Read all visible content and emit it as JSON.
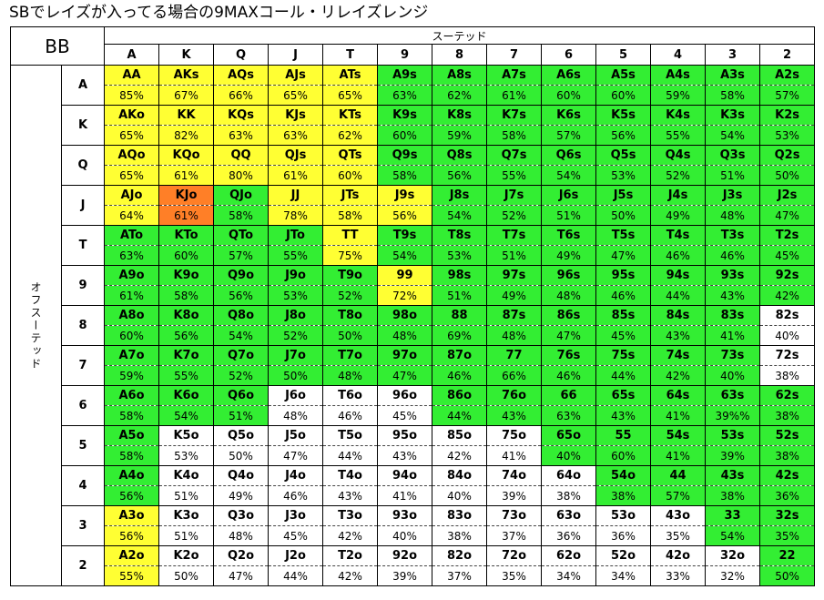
{
  "title": "SBでレイズが入ってる場合の9MAXコール・リレイズレンジ",
  "corner_label": "BB",
  "suited_label": "スーテッド",
  "offsuit_label": "オフスーテッド",
  "ranks": [
    "A",
    "K",
    "Q",
    "J",
    "T",
    "9",
    "8",
    "7",
    "6",
    "5",
    "4",
    "3",
    "2"
  ],
  "colors": {
    "y": "#ffff33",
    "g": "#33ee33",
    "o": "#ff7f27",
    "w": "#ffffff"
  },
  "rows": [
    {
      "rank": "A",
      "cells": [
        {
          "hand": "AA",
          "pct": "85%",
          "color": "y"
        },
        {
          "hand": "AKs",
          "pct": "67%",
          "color": "y"
        },
        {
          "hand": "AQs",
          "pct": "66%",
          "color": "y"
        },
        {
          "hand": "AJs",
          "pct": "65%",
          "color": "y"
        },
        {
          "hand": "ATs",
          "pct": "65%",
          "color": "y"
        },
        {
          "hand": "A9s",
          "pct": "63%",
          "color": "g"
        },
        {
          "hand": "A8s",
          "pct": "62%",
          "color": "g"
        },
        {
          "hand": "A7s",
          "pct": "61%",
          "color": "g"
        },
        {
          "hand": "A6s",
          "pct": "60%",
          "color": "g"
        },
        {
          "hand": "A5s",
          "pct": "60%",
          "color": "g"
        },
        {
          "hand": "A4s",
          "pct": "59%",
          "color": "g"
        },
        {
          "hand": "A3s",
          "pct": "58%",
          "color": "g"
        },
        {
          "hand": "A2s",
          "pct": "57%",
          "color": "g"
        }
      ]
    },
    {
      "rank": "K",
      "cells": [
        {
          "hand": "AKo",
          "pct": "65%",
          "color": "y"
        },
        {
          "hand": "KK",
          "pct": "82%",
          "color": "y"
        },
        {
          "hand": "KQs",
          "pct": "63%",
          "color": "y"
        },
        {
          "hand": "KJs",
          "pct": "63%",
          "color": "y"
        },
        {
          "hand": "KTs",
          "pct": "62%",
          "color": "y"
        },
        {
          "hand": "K9s",
          "pct": "60%",
          "color": "g"
        },
        {
          "hand": "K8s",
          "pct": "59%",
          "color": "g"
        },
        {
          "hand": "K7s",
          "pct": "58%",
          "color": "g"
        },
        {
          "hand": "K6s",
          "pct": "57%",
          "color": "g"
        },
        {
          "hand": "K5s",
          "pct": "56%",
          "color": "g"
        },
        {
          "hand": "K4s",
          "pct": "55%",
          "color": "g"
        },
        {
          "hand": "K3s",
          "pct": "54%",
          "color": "g"
        },
        {
          "hand": "K2s",
          "pct": "53%",
          "color": "g"
        }
      ]
    },
    {
      "rank": "Q",
      "cells": [
        {
          "hand": "AQo",
          "pct": "65%",
          "color": "y"
        },
        {
          "hand": "KQo",
          "pct": "61%",
          "color": "y"
        },
        {
          "hand": "QQ",
          "pct": "80%",
          "color": "y"
        },
        {
          "hand": "QJs",
          "pct": "61%",
          "color": "y"
        },
        {
          "hand": "QTs",
          "pct": "60%",
          "color": "y"
        },
        {
          "hand": "Q9s",
          "pct": "58%",
          "color": "g"
        },
        {
          "hand": "Q8s",
          "pct": "56%",
          "color": "g"
        },
        {
          "hand": "Q7s",
          "pct": "55%",
          "color": "g"
        },
        {
          "hand": "Q6s",
          "pct": "54%",
          "color": "g"
        },
        {
          "hand": "Q5s",
          "pct": "53%",
          "color": "g"
        },
        {
          "hand": "Q4s",
          "pct": "52%",
          "color": "g"
        },
        {
          "hand": "Q3s",
          "pct": "51%",
          "color": "g"
        },
        {
          "hand": "Q2s",
          "pct": "50%",
          "color": "g"
        }
      ]
    },
    {
      "rank": "J",
      "cells": [
        {
          "hand": "AJo",
          "pct": "64%",
          "color": "y"
        },
        {
          "hand": "KJo",
          "pct": "61%",
          "color": "o"
        },
        {
          "hand": "QJo",
          "pct": "58%",
          "color": "g"
        },
        {
          "hand": "JJ",
          "pct": "78%",
          "color": "y"
        },
        {
          "hand": "JTs",
          "pct": "58%",
          "color": "y"
        },
        {
          "hand": "J9s",
          "pct": "56%",
          "color": "y"
        },
        {
          "hand": "J8s",
          "pct": "54%",
          "color": "g"
        },
        {
          "hand": "J7s",
          "pct": "52%",
          "color": "g"
        },
        {
          "hand": "J6s",
          "pct": "51%",
          "color": "g"
        },
        {
          "hand": "J5s",
          "pct": "50%",
          "color": "g"
        },
        {
          "hand": "J4s",
          "pct": "49%",
          "color": "g"
        },
        {
          "hand": "J3s",
          "pct": "48%",
          "color": "g"
        },
        {
          "hand": "J2s",
          "pct": "47%",
          "color": "g"
        }
      ]
    },
    {
      "rank": "T",
      "cells": [
        {
          "hand": "ATo",
          "pct": "63%",
          "color": "g"
        },
        {
          "hand": "KTo",
          "pct": "60%",
          "color": "g"
        },
        {
          "hand": "QTo",
          "pct": "57%",
          "color": "g"
        },
        {
          "hand": "JTo",
          "pct": "55%",
          "color": "g"
        },
        {
          "hand": "TT",
          "pct": "75%",
          "color": "y"
        },
        {
          "hand": "T9s",
          "pct": "54%",
          "color": "g"
        },
        {
          "hand": "T8s",
          "pct": "53%",
          "color": "g"
        },
        {
          "hand": "T7s",
          "pct": "51%",
          "color": "g"
        },
        {
          "hand": "T6s",
          "pct": "49%",
          "color": "g"
        },
        {
          "hand": "T5s",
          "pct": "47%",
          "color": "g"
        },
        {
          "hand": "T4s",
          "pct": "46%",
          "color": "g"
        },
        {
          "hand": "T3s",
          "pct": "46%",
          "color": "g"
        },
        {
          "hand": "T2s",
          "pct": "45%",
          "color": "g"
        }
      ]
    },
    {
      "rank": "9",
      "cells": [
        {
          "hand": "A9o",
          "pct": "61%",
          "color": "g"
        },
        {
          "hand": "K9o",
          "pct": "58%",
          "color": "g"
        },
        {
          "hand": "Q9o",
          "pct": "56%",
          "color": "g"
        },
        {
          "hand": "J9o",
          "pct": "53%",
          "color": "g"
        },
        {
          "hand": "T9o",
          "pct": "52%",
          "color": "g"
        },
        {
          "hand": "99",
          "pct": "72%",
          "color": "y"
        },
        {
          "hand": "98s",
          "pct": "51%",
          "color": "g"
        },
        {
          "hand": "97s",
          "pct": "49%",
          "color": "g"
        },
        {
          "hand": "96s",
          "pct": "48%",
          "color": "g"
        },
        {
          "hand": "95s",
          "pct": "46%",
          "color": "g"
        },
        {
          "hand": "94s",
          "pct": "44%",
          "color": "g"
        },
        {
          "hand": "93s",
          "pct": "43%",
          "color": "g"
        },
        {
          "hand": "92s",
          "pct": "42%",
          "color": "g"
        }
      ]
    },
    {
      "rank": "8",
      "cells": [
        {
          "hand": "A8o",
          "pct": "60%",
          "color": "g"
        },
        {
          "hand": "K8o",
          "pct": "56%",
          "color": "g"
        },
        {
          "hand": "Q8o",
          "pct": "54%",
          "color": "g"
        },
        {
          "hand": "J8o",
          "pct": "52%",
          "color": "g"
        },
        {
          "hand": "T8o",
          "pct": "50%",
          "color": "g"
        },
        {
          "hand": "98o",
          "pct": "48%",
          "color": "g"
        },
        {
          "hand": "88",
          "pct": "69%",
          "color": "g"
        },
        {
          "hand": "87s",
          "pct": "48%",
          "color": "g"
        },
        {
          "hand": "86s",
          "pct": "47%",
          "color": "g"
        },
        {
          "hand": "85s",
          "pct": "45%",
          "color": "g"
        },
        {
          "hand": "84s",
          "pct": "43%",
          "color": "g"
        },
        {
          "hand": "83s",
          "pct": "41%",
          "color": "g"
        },
        {
          "hand": "82s",
          "pct": "40%",
          "color": "w"
        }
      ]
    },
    {
      "rank": "7",
      "cells": [
        {
          "hand": "A7o",
          "pct": "59%",
          "color": "g"
        },
        {
          "hand": "K7o",
          "pct": "55%",
          "color": "g"
        },
        {
          "hand": "Q7o",
          "pct": "52%",
          "color": "g"
        },
        {
          "hand": "J7o",
          "pct": "50%",
          "color": "g"
        },
        {
          "hand": "T7o",
          "pct": "48%",
          "color": "g"
        },
        {
          "hand": "97o",
          "pct": "47%",
          "color": "g"
        },
        {
          "hand": "87o",
          "pct": "46%",
          "color": "g"
        },
        {
          "hand": "77",
          "pct": "66%",
          "color": "g"
        },
        {
          "hand": "76s",
          "pct": "46%",
          "color": "g"
        },
        {
          "hand": "75s",
          "pct": "44%",
          "color": "g"
        },
        {
          "hand": "74s",
          "pct": "42%",
          "color": "g"
        },
        {
          "hand": "73s",
          "pct": "40%",
          "color": "g"
        },
        {
          "hand": "72s",
          "pct": "38%",
          "color": "w"
        }
      ]
    },
    {
      "rank": "6",
      "cells": [
        {
          "hand": "A6o",
          "pct": "58%",
          "color": "g"
        },
        {
          "hand": "K6o",
          "pct": "54%",
          "color": "g"
        },
        {
          "hand": "Q6o",
          "pct": "51%",
          "color": "g"
        },
        {
          "hand": "J6o",
          "pct": "48%",
          "color": "w"
        },
        {
          "hand": "T6o",
          "pct": "46%",
          "color": "w"
        },
        {
          "hand": "96o",
          "pct": "45%",
          "color": "w"
        },
        {
          "hand": "86o",
          "pct": "44%",
          "color": "g"
        },
        {
          "hand": "76o",
          "pct": "43%",
          "color": "g"
        },
        {
          "hand": "66",
          "pct": "63%",
          "color": "g"
        },
        {
          "hand": "65s",
          "pct": "43%",
          "color": "g"
        },
        {
          "hand": "64s",
          "pct": "41%",
          "color": "g"
        },
        {
          "hand": "63s",
          "pct": "39%%",
          "color": "g"
        },
        {
          "hand": "62s",
          "pct": "38%",
          "color": "g"
        }
      ]
    },
    {
      "rank": "5",
      "cells": [
        {
          "hand": "A5o",
          "pct": "58%",
          "color": "g"
        },
        {
          "hand": "K5o",
          "pct": "53%",
          "color": "w"
        },
        {
          "hand": "Q5o",
          "pct": "50%",
          "color": "w"
        },
        {
          "hand": "J5o",
          "pct": "47%",
          "color": "w"
        },
        {
          "hand": "T5o",
          "pct": "44%",
          "color": "w"
        },
        {
          "hand": "95o",
          "pct": "43%",
          "color": "w"
        },
        {
          "hand": "85o",
          "pct": "42%",
          "color": "w"
        },
        {
          "hand": "75o",
          "pct": "41%",
          "color": "w"
        },
        {
          "hand": "65o",
          "pct": "40%",
          "color": "g"
        },
        {
          "hand": "55",
          "pct": "60%",
          "color": "g"
        },
        {
          "hand": "54s",
          "pct": "41%",
          "color": "g"
        },
        {
          "hand": "53s",
          "pct": "39%",
          "color": "g"
        },
        {
          "hand": "52s",
          "pct": "38%",
          "color": "g"
        }
      ]
    },
    {
      "rank": "4",
      "cells": [
        {
          "hand": "A4o",
          "pct": "56%",
          "color": "g"
        },
        {
          "hand": "K4o",
          "pct": "51%",
          "color": "w"
        },
        {
          "hand": "Q4o",
          "pct": "49%",
          "color": "w"
        },
        {
          "hand": "J4o",
          "pct": "46%",
          "color": "w"
        },
        {
          "hand": "T4o",
          "pct": "43%",
          "color": "w"
        },
        {
          "hand": "94o",
          "pct": "41%",
          "color": "w"
        },
        {
          "hand": "84o",
          "pct": "40%",
          "color": "w"
        },
        {
          "hand": "74o",
          "pct": "39%",
          "color": "w"
        },
        {
          "hand": "64o",
          "pct": "38%",
          "color": "w"
        },
        {
          "hand": "54o",
          "pct": "38%",
          "color": "g"
        },
        {
          "hand": "44",
          "pct": "57%",
          "color": "g"
        },
        {
          "hand": "43s",
          "pct": "38%",
          "color": "g"
        },
        {
          "hand": "42s",
          "pct": "36%",
          "color": "g"
        }
      ]
    },
    {
      "rank": "3",
      "cells": [
        {
          "hand": "A3o",
          "pct": "56%",
          "color": "y"
        },
        {
          "hand": "K3o",
          "pct": "51%",
          "color": "w"
        },
        {
          "hand": "Q3o",
          "pct": "48%",
          "color": "w"
        },
        {
          "hand": "J3o",
          "pct": "45%",
          "color": "w"
        },
        {
          "hand": "T3o",
          "pct": "42%",
          "color": "w"
        },
        {
          "hand": "93o",
          "pct": "40%",
          "color": "w"
        },
        {
          "hand": "83o",
          "pct": "38%",
          "color": "w"
        },
        {
          "hand": "73o",
          "pct": "37%",
          "color": "w"
        },
        {
          "hand": "63o",
          "pct": "36%",
          "color": "w"
        },
        {
          "hand": "53o",
          "pct": "36%",
          "color": "w"
        },
        {
          "hand": "43o",
          "pct": "35%",
          "color": "w"
        },
        {
          "hand": "33",
          "pct": "54%",
          "color": "g"
        },
        {
          "hand": "32s",
          "pct": "35%",
          "color": "g"
        }
      ]
    },
    {
      "rank": "2",
      "cells": [
        {
          "hand": "A2o",
          "pct": "55%",
          "color": "y"
        },
        {
          "hand": "K2o",
          "pct": "50%",
          "color": "w"
        },
        {
          "hand": "Q2o",
          "pct": "47%",
          "color": "w"
        },
        {
          "hand": "J2o",
          "pct": "44%",
          "color": "w"
        },
        {
          "hand": "T2o",
          "pct": "42%",
          "color": "w"
        },
        {
          "hand": "92o",
          "pct": "39%",
          "color": "w"
        },
        {
          "hand": "82o",
          "pct": "37%",
          "color": "w"
        },
        {
          "hand": "72o",
          "pct": "35%",
          "color": "w"
        },
        {
          "hand": "62o",
          "pct": "34%",
          "color": "w"
        },
        {
          "hand": "52o",
          "pct": "34%",
          "color": "w"
        },
        {
          "hand": "42o",
          "pct": "33%",
          "color": "w"
        },
        {
          "hand": "32o",
          "pct": "32%",
          "color": "w"
        },
        {
          "hand": "22",
          "pct": "50%",
          "color": "g"
        }
      ]
    }
  ]
}
